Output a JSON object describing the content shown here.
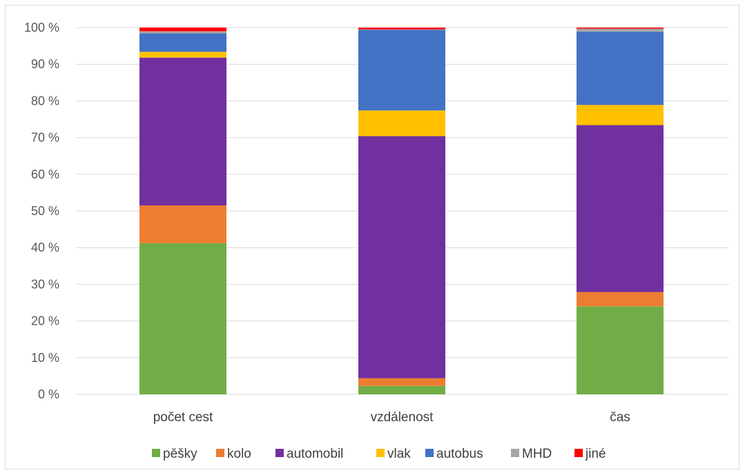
{
  "chart_data": {
    "type": "bar",
    "stacked": true,
    "percent": true,
    "categories": [
      "počet cest",
      "vzdálenost",
      "čas"
    ],
    "y_ticks": [
      "0 %",
      "10 %",
      "20 %",
      "30 %",
      "40 %",
      "50 %",
      "60 %",
      "70 %",
      "80 %",
      "90 %",
      "100 %"
    ],
    "ylim": [
      0,
      100
    ],
    "grid": true,
    "legend_position": "bottom",
    "series": [
      {
        "name": "pěšky",
        "color": "#70ad47",
        "values": [
          41.2,
          2.3,
          24.0
        ]
      },
      {
        "name": "kolo",
        "color": "#ed7d31",
        "values": [
          10.3,
          2.1,
          3.9
        ]
      },
      {
        "name": "automobil",
        "color": "#7030a0",
        "values": [
          40.3,
          66.0,
          45.5
        ]
      },
      {
        "name": "vlak",
        "color": "#ffc000",
        "values": [
          1.6,
          7.0,
          5.5
        ]
      },
      {
        "name": "autobus",
        "color": "#4472c4",
        "values": [
          5.0,
          22.0,
          20.0
        ]
      },
      {
        "name": "MHD",
        "color": "#a5a5a5",
        "values": [
          0.6,
          0.1,
          0.8
        ]
      },
      {
        "name": "jiné",
        "color": "#ff0000",
        "values": [
          1.0,
          0.5,
          0.3
        ]
      }
    ]
  }
}
